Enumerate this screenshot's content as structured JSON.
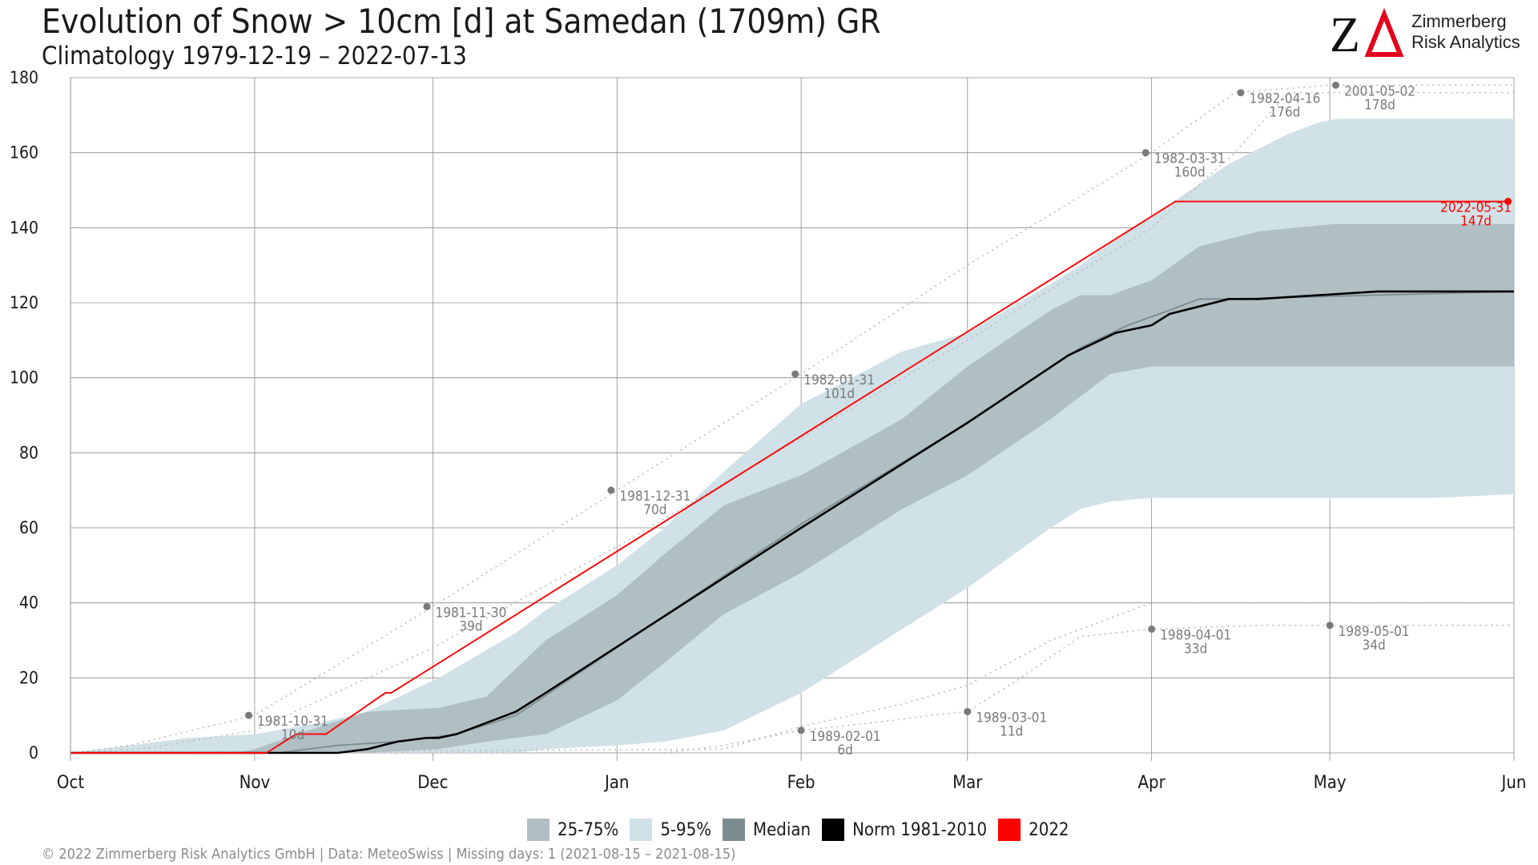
{
  "header": {
    "title": "Evolution of Snow > 10cm [d] at Samedan (1709m) GR",
    "subtitle": "Climatology 1979-12-19 – 2022-07-13"
  },
  "logo": {
    "mark_icon": "zimmerberg-za-logo-icon",
    "line1": "Zimmerberg",
    "line2": "Risk Analytics"
  },
  "legend": [
    {
      "label": "25-75%",
      "color": "#b0bfc4"
    },
    {
      "label": "5-95%",
      "color": "#d0e1e7"
    },
    {
      "label": "Median",
      "color": "#7b8c91"
    },
    {
      "label": "Norm 1981-2010",
      "color": "#000000"
    },
    {
      "label": "2022",
      "color": "#ff0000"
    }
  ],
  "footer": "©  2022 Zimmerberg Risk Analytics GmbH | Data: MeteoSwiss | Missing days: 1 (2021-08-15 – 2021-08-15)",
  "chart_data": {
    "type": "area",
    "title": "Evolution of Snow > 10cm [d] at Samedan (1709m) GR",
    "subtitle": "Climatology 1979-12-19 – 2022-07-13",
    "xlabel": "",
    "ylabel": "",
    "x_unit": "day of season (0 = Oct 1)",
    "xlim": [
      0,
      243
    ],
    "ylim": [
      0,
      180
    ],
    "grid": true,
    "legend_position": "bottom",
    "x_ticks": [
      {
        "label": "Oct",
        "x": 0
      },
      {
        "label": "Nov",
        "x": 31
      },
      {
        "label": "Dec",
        "x": 61
      },
      {
        "label": "Jan",
        "x": 92
      },
      {
        "label": "Feb",
        "x": 123
      },
      {
        "label": "Mar",
        "x": 151
      },
      {
        "label": "Apr",
        "x": 182
      },
      {
        "label": "May",
        "x": 212
      },
      {
        "label": "Jun",
        "x": 243
      }
    ],
    "y_ticks": [
      0,
      20,
      40,
      60,
      80,
      100,
      120,
      140,
      160,
      180
    ],
    "bands": [
      {
        "name": "5-95%",
        "color": "#d0e1e7",
        "x": [
          0,
          20,
          31,
          42,
          50,
          62,
          75,
          80,
          92,
          100,
          110,
          123,
          140,
          151,
          165,
          170,
          175,
          182,
          195,
          205,
          210,
          213,
          230,
          243
        ],
        "lower": [
          0,
          0,
          0,
          0,
          0,
          0,
          0,
          1,
          2,
          3,
          6,
          16,
          33,
          44,
          60,
          65,
          67,
          68,
          68,
          68,
          68,
          68,
          68,
          69
        ],
        "upper": [
          0,
          4,
          5,
          8,
          11,
          20,
          32,
          38,
          50,
          60,
          75,
          93,
          107,
          112,
          125,
          130,
          136,
          143,
          157,
          165,
          168,
          169,
          169,
          169
        ]
      },
      {
        "name": "25-75%",
        "color": "#b0bfc4",
        "x": [
          0,
          28,
          31,
          40,
          50,
          62,
          70,
          80,
          92,
          100,
          110,
          123,
          140,
          151,
          165,
          170,
          175,
          182,
          190,
          200,
          206,
          213,
          230,
          243
        ],
        "lower": [
          0,
          0,
          0,
          0,
          0,
          1,
          3,
          5,
          14,
          24,
          37,
          48,
          65,
          74,
          89,
          95,
          101,
          103,
          103,
          103,
          103,
          103,
          103,
          103
        ],
        "upper": [
          0,
          0,
          1,
          6,
          11,
          12,
          15,
          30,
          42,
          53,
          66,
          74,
          89,
          103,
          118,
          122,
          122,
          126,
          135,
          139,
          140,
          141,
          141,
          141
        ]
      }
    ],
    "series": [
      {
        "name": "Median",
        "color": "#7b8c91",
        "width": 1.8,
        "x": [
          0,
          35,
          45,
          55,
          65,
          75,
          123,
          151,
          170,
          178,
          185,
          190,
          195,
          243
        ],
        "y": [
          0,
          0,
          2,
          3,
          5,
          10,
          61,
          88,
          108,
          114,
          118,
          121,
          121,
          123
        ]
      },
      {
        "name": "Norm 1981-2010",
        "color": "#000000",
        "width": 2.6,
        "x": [
          0,
          45,
          50,
          55,
          60,
          62,
          65,
          70,
          75,
          80,
          123,
          151,
          168,
          172,
          176,
          182,
          185,
          190,
          195,
          200,
          220,
          240,
          243
        ],
        "y": [
          0,
          0,
          1,
          3,
          4,
          4,
          5,
          8,
          11,
          16,
          60,
          88,
          106,
          109,
          112,
          114,
          117,
          119,
          121,
          121,
          123,
          123,
          123
        ]
      },
      {
        "name": "2022",
        "color": "#ff0000",
        "width": 1.9,
        "x": [
          0,
          33,
          38,
          43,
          53,
          54,
          186,
          242
        ],
        "y": [
          0,
          0,
          5,
          5,
          16,
          16,
          147,
          147
        ]
      }
    ],
    "records": [
      {
        "name": "max-1981",
        "color": "#bbbbbb",
        "x": [
          0,
          10,
          31,
          61,
          92,
          123,
          151,
          182,
          196,
          212,
          243
        ],
        "y": [
          0,
          2,
          10,
          39,
          70,
          101,
          130,
          160,
          176,
          178,
          178
        ]
      },
      {
        "name": "max-1982",
        "color": "#bbbbbb",
        "x": [
          0,
          12,
          31,
          61,
          92,
          123,
          151,
          182,
          196,
          205,
          243
        ],
        "y": [
          0,
          1,
          6,
          28,
          55,
          84,
          110,
          140,
          160,
          176,
          176
        ]
      },
      {
        "name": "min-1989",
        "color": "#bbbbbb",
        "x": [
          0,
          100,
          110,
          123,
          135,
          145,
          151,
          160,
          170,
          182,
          200,
          212,
          243
        ],
        "y": [
          0,
          0,
          2,
          6,
          8,
          10,
          11,
          20,
          31,
          33,
          34,
          34,
          34
        ]
      },
      {
        "name": "min-1989b",
        "color": "#bbbbbb",
        "x": [
          0,
          110,
          123,
          140,
          151,
          165,
          182,
          243
        ],
        "y": [
          0,
          1,
          7,
          13,
          18,
          30,
          40,
          40
        ]
      }
    ],
    "annotations": [
      {
        "date": "1981-10-31",
        "value": "10d",
        "x": 30,
        "y": 10
      },
      {
        "date": "1981-11-30",
        "value": "39d",
        "x": 60,
        "y": 39
      },
      {
        "date": "1981-12-31",
        "value": "70d",
        "x": 91,
        "y": 70
      },
      {
        "date": "1982-01-31",
        "value": "101d",
        "x": 122,
        "y": 101
      },
      {
        "date": "1982-03-31",
        "value": "160d",
        "x": 181,
        "y": 160
      },
      {
        "date": "1982-04-16",
        "value": "176d",
        "x": 197,
        "y": 176
      },
      {
        "date": "2001-05-02",
        "value": "178d",
        "x": 213,
        "y": 178
      },
      {
        "date": "1989-02-01",
        "value": "6d",
        "x": 123,
        "y": 6
      },
      {
        "date": "1989-03-01",
        "value": "11d",
        "x": 151,
        "y": 11
      },
      {
        "date": "1989-04-01",
        "value": "33d",
        "x": 182,
        "y": 33
      },
      {
        "date": "1989-05-01",
        "value": "34d",
        "x": 212,
        "y": 34
      },
      {
        "date": "2022-05-31",
        "value": "147d",
        "x": 242,
        "y": 147,
        "color": "#ff0000"
      }
    ]
  }
}
